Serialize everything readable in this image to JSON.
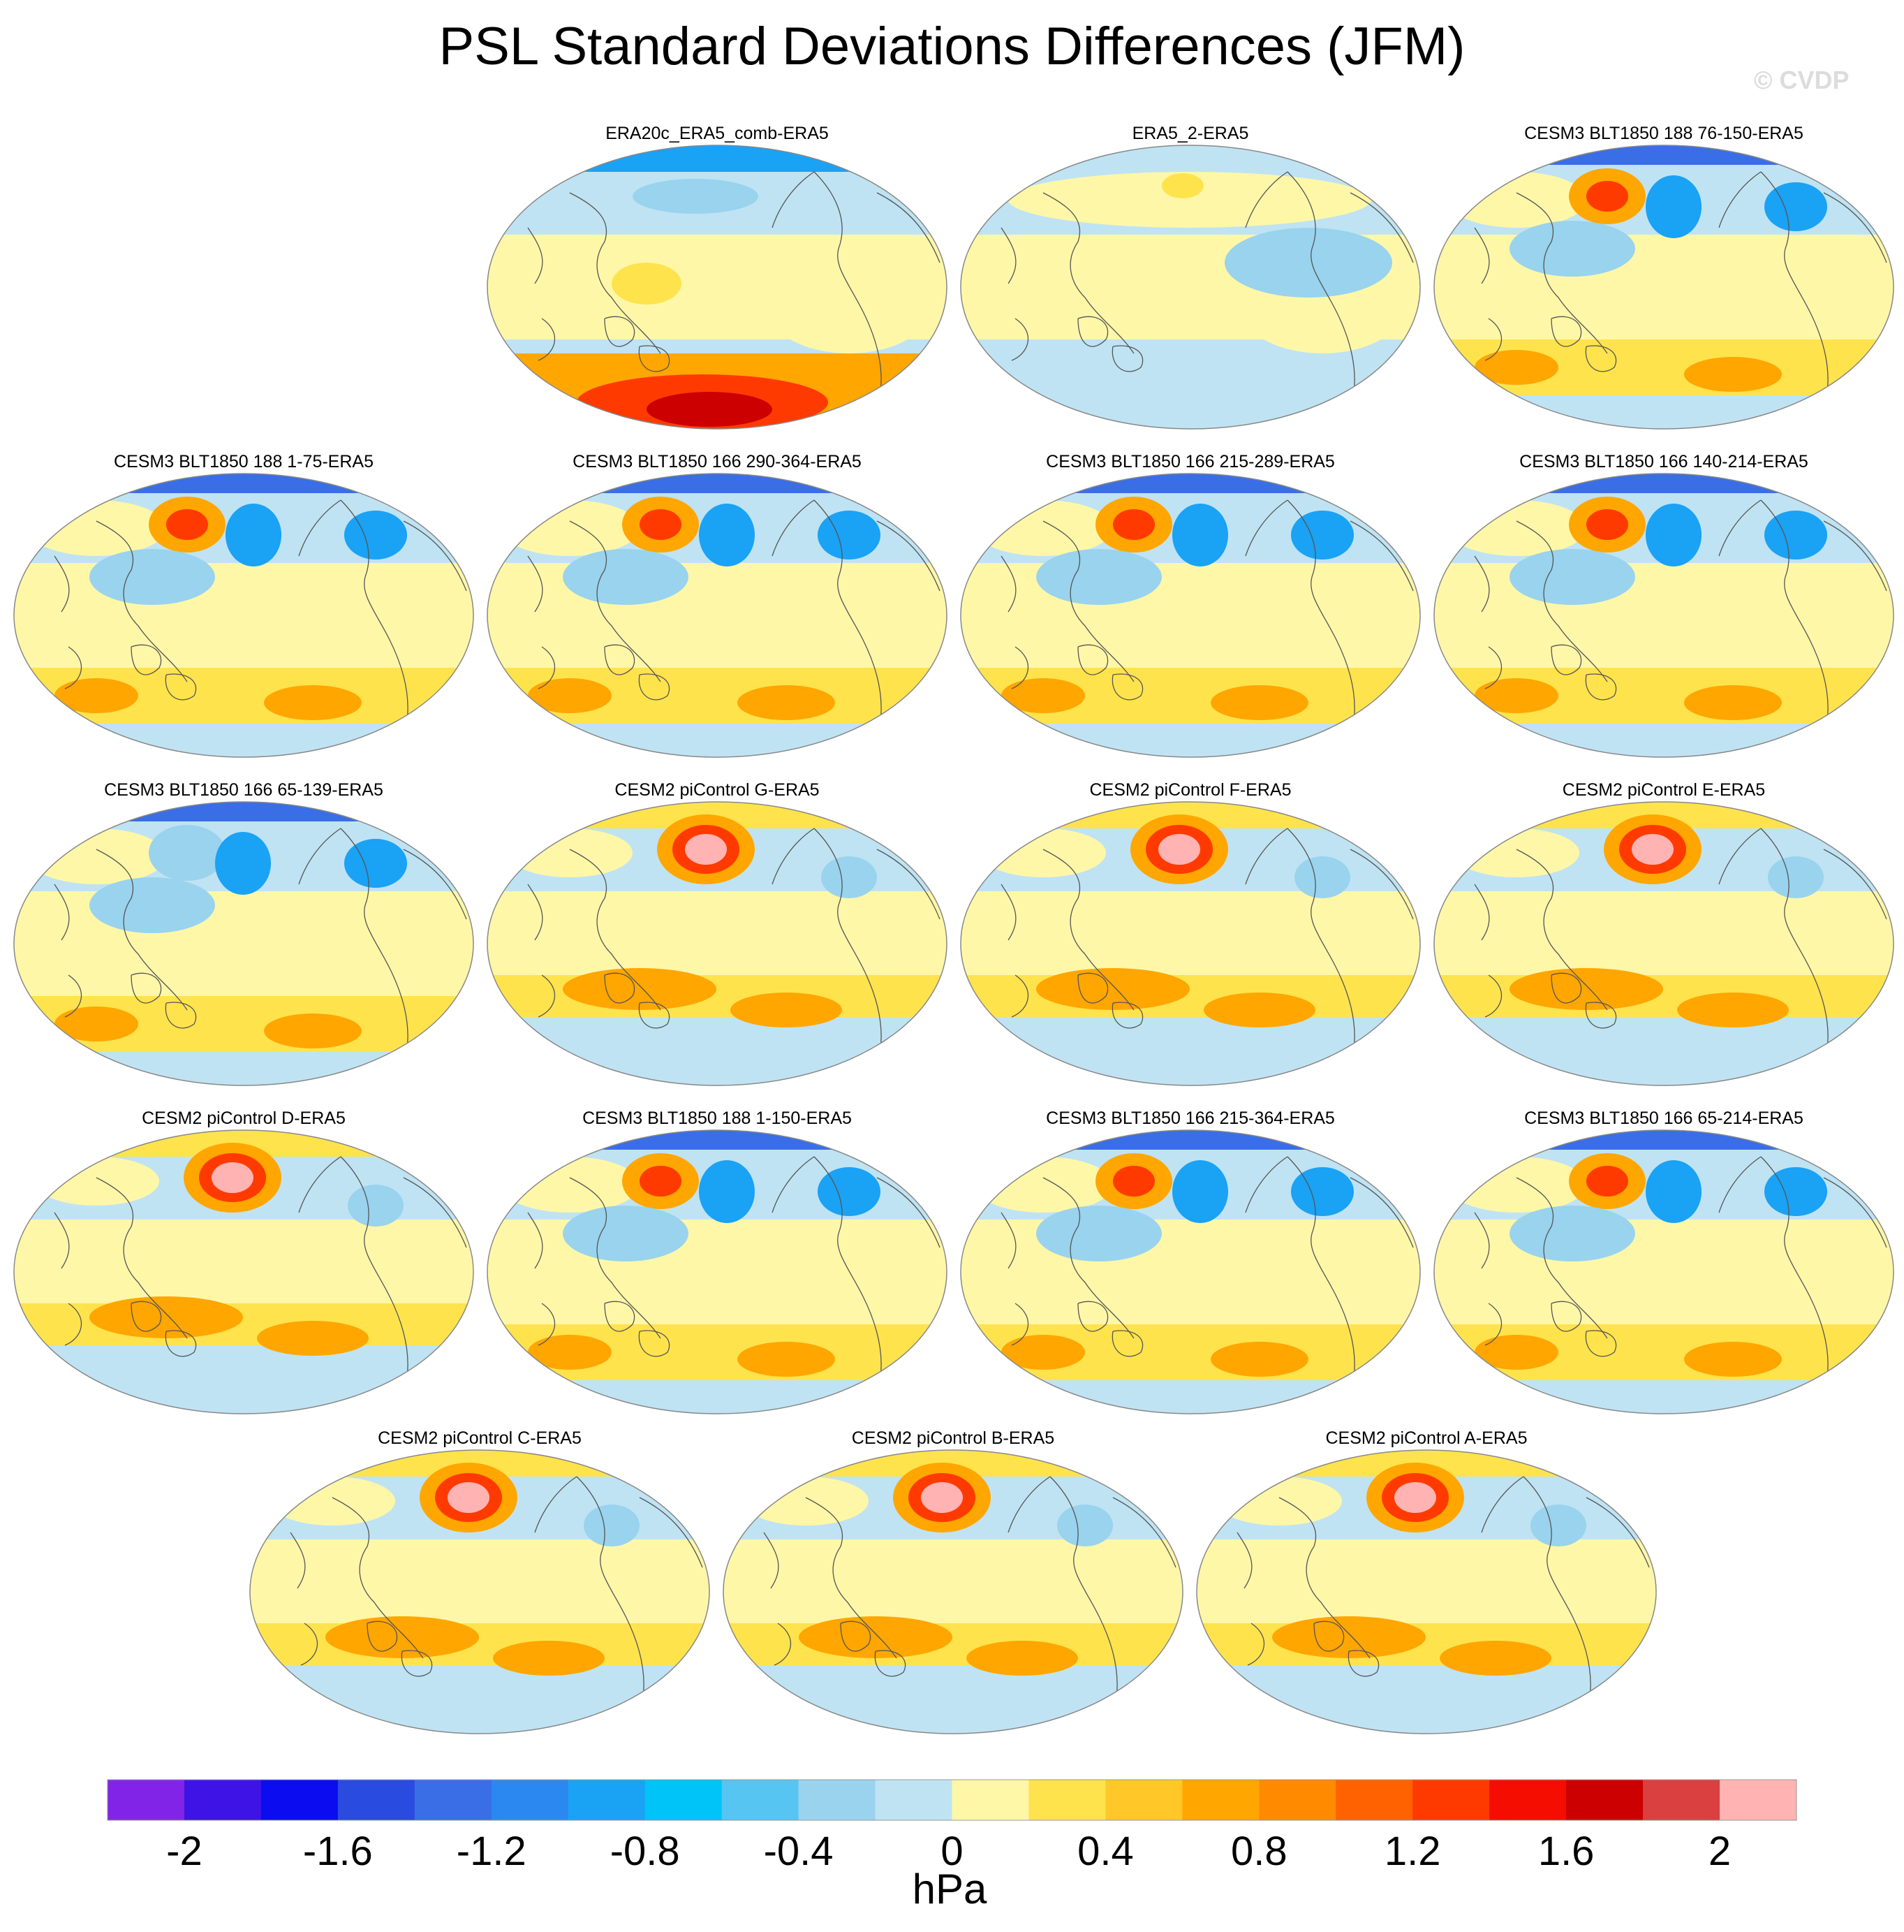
{
  "title": "PSL Standard Deviations Differences (JFM)",
  "watermark": "© CVDP",
  "chart_data": {
    "type": "heatmap",
    "projection": "global map panels",
    "title": "PSL Standard Deviations Differences (JFM)",
    "panels": [
      {
        "label": "ERA20c_ERA5_comb-ERA5",
        "row": 0,
        "col": 1,
        "pattern": "era20c"
      },
      {
        "label": "ERA5_2-ERA5",
        "row": 0,
        "col": 2,
        "pattern": "era5_2"
      },
      {
        "label": "CESM3 BLT1850 188 76-150-ERA5",
        "row": 0,
        "col": 3,
        "pattern": "cesm3"
      },
      {
        "label": "CESM3 BLT1850 188 1-75-ERA5",
        "row": 1,
        "col": 0,
        "pattern": "cesm3"
      },
      {
        "label": "CESM3 BLT1850 166 290-364-ERA5",
        "row": 1,
        "col": 1,
        "pattern": "cesm3"
      },
      {
        "label": "CESM3 BLT1850 166 215-289-ERA5",
        "row": 1,
        "col": 2,
        "pattern": "cesm3"
      },
      {
        "label": "CESM3 BLT1850 166 140-214-ERA5",
        "row": 1,
        "col": 3,
        "pattern": "cesm3"
      },
      {
        "label": "CESM3 BLT1850 166 65-139-ERA5",
        "row": 2,
        "col": 0,
        "pattern": "cesm3_blue"
      },
      {
        "label": "CESM2 piControl G-ERA5",
        "row": 2,
        "col": 1,
        "pattern": "cesm2"
      },
      {
        "label": "CESM2 piControl F-ERA5",
        "row": 2,
        "col": 2,
        "pattern": "cesm2"
      },
      {
        "label": "CESM2 piControl E-ERA5",
        "row": 2,
        "col": 3,
        "pattern": "cesm2"
      },
      {
        "label": "CESM2 piControl D-ERA5",
        "row": 3,
        "col": 0,
        "pattern": "cesm2"
      },
      {
        "label": "CESM3 BLT1850 188 1-150-ERA5",
        "row": 3,
        "col": 1,
        "pattern": "cesm3"
      },
      {
        "label": "CESM3 BLT1850 166 215-364-ERA5",
        "row": 3,
        "col": 2,
        "pattern": "cesm3"
      },
      {
        "label": "CESM3 BLT1850 166 65-214-ERA5",
        "row": 3,
        "col": 3,
        "pattern": "cesm3"
      },
      {
        "label": "CESM2 piControl C-ERA5",
        "row": 4,
        "col": 0,
        "pattern": "cesm2"
      },
      {
        "label": "CESM2 piControl B-ERA5",
        "row": 4,
        "col": 1,
        "pattern": "cesm2"
      },
      {
        "label": "CESM2 piControl A-ERA5",
        "row": 4,
        "col": 2,
        "pattern": "cesm2"
      }
    ],
    "colorbar": {
      "units": "hPa",
      "colors": [
        "#8224e8",
        "#3d14e5",
        "#0b0cf0",
        "#2a4be0",
        "#3a6ee6",
        "#2b88f0",
        "#1aa2f5",
        "#00c3f7",
        "#56c5f2",
        "#99d3ee",
        "#bfe3f3",
        "#fff7a8",
        "#ffe34d",
        "#ffc828",
        "#ffa600",
        "#ff8a00",
        "#ff6200",
        "#ff3a00",
        "#f40d00",
        "#cc0000",
        "#da4040",
        "#ffb3b3"
      ],
      "ticks": [
        "-2",
        "-1.6",
        "-1.2",
        "-0.8",
        "-0.4",
        "0",
        "0.4",
        "0.8",
        "1.2",
        "1.6",
        "2"
      ],
      "range": [
        -2.2,
        2.2
      ]
    }
  }
}
